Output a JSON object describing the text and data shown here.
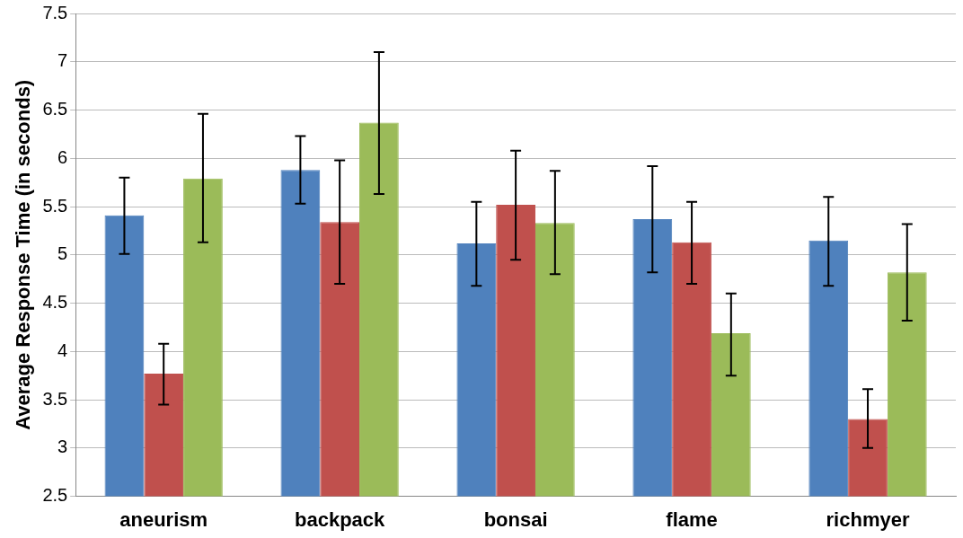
{
  "chart_data": {
    "type": "bar",
    "ylabel": "Average Response Time (in seconds)",
    "categories": [
      "aneurism",
      "backpack",
      "bonsai",
      "flame",
      "richmyer"
    ],
    "series": [
      {
        "color": "#4f81bd",
        "values": [
          5.41,
          5.88,
          5.12,
          5.37,
          5.15
        ],
        "errors": [
          [
            5.01,
            5.8
          ],
          [
            5.53,
            6.23
          ],
          [
            4.68,
            5.55
          ],
          [
            4.82,
            5.92
          ],
          [
            4.68,
            5.6
          ]
        ]
      },
      {
        "color": "#c0504d",
        "values": [
          3.77,
          5.34,
          5.52,
          5.13,
          3.3
        ],
        "errors": [
          [
            3.45,
            4.08
          ],
          [
            4.7,
            5.98
          ],
          [
            4.95,
            6.08
          ],
          [
            4.7,
            5.55
          ],
          [
            3.0,
            3.61
          ]
        ]
      },
      {
        "color": "#9bbb59",
        "values": [
          5.79,
          6.37,
          5.33,
          4.19,
          4.82
        ],
        "errors": [
          [
            5.13,
            6.46
          ],
          [
            5.63,
            7.1
          ],
          [
            4.8,
            5.87
          ],
          [
            3.75,
            4.6
          ],
          [
            4.32,
            5.32
          ]
        ]
      }
    ],
    "ylim": [
      2.5,
      7.5
    ],
    "yticks": [
      2.5,
      3,
      3.5,
      4,
      4.5,
      5,
      5.5,
      6,
      6.5,
      7,
      7.5
    ],
    "grid": "y",
    "legend": false
  }
}
